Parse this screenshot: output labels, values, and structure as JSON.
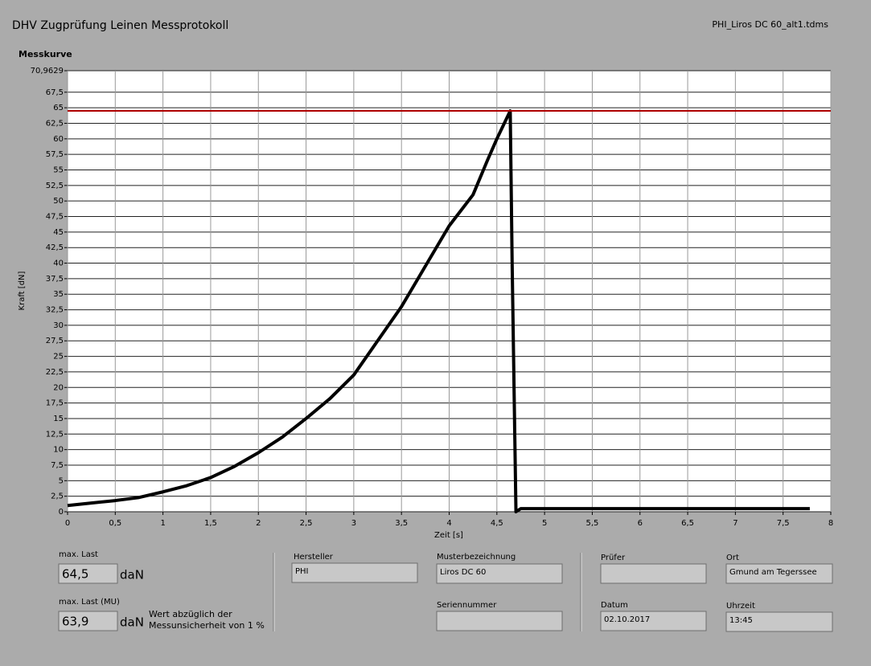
{
  "header": {
    "title": "DHV Zugprüfung Leinen Messprotokoll",
    "file": "PHI_Liros DC 60_alt1.tdms"
  },
  "chart_data": {
    "type": "line",
    "title": "Messkurve",
    "xlabel": "Zeit [s]",
    "ylabel": "Kraft [dN]",
    "xlim": [
      0,
      8
    ],
    "xticks": [
      0,
      {
        "value": 0.5,
        "label": "0,5"
      },
      1,
      {
        "value": 1.5,
        "label": "1,5"
      },
      2,
      {
        "value": 2.5,
        "label": "2,5"
      },
      3,
      {
        "value": 3.5,
        "label": "3,5"
      },
      4,
      {
        "value": 4.5,
        "label": "4,5"
      },
      5,
      {
        "value": 5.5,
        "label": "5,5"
      },
      6,
      {
        "value": 6.5,
        "label": "6,5"
      },
      7,
      {
        "value": 7.5,
        "label": "7,5"
      },
      8
    ],
    "ylim": [
      0,
      70.9629
    ],
    "yticks": [
      0,
      {
        "value": 2.5,
        "label": "2,5"
      },
      5,
      {
        "value": 7.5,
        "label": "7,5"
      },
      10,
      {
        "value": 12.5,
        "label": "12,5"
      },
      15,
      {
        "value": 17.5,
        "label": "17,5"
      },
      20,
      {
        "value": 22.5,
        "label": "22,5"
      },
      25,
      {
        "value": 27.5,
        "label": "27,5"
      },
      30,
      {
        "value": 32.5,
        "label": "32,5"
      },
      35,
      {
        "value": 37.5,
        "label": "37,5"
      },
      40,
      {
        "value": 42.5,
        "label": "42,5"
      },
      45,
      {
        "value": 47.5,
        "label": "47,5"
      },
      50,
      {
        "value": 52.5,
        "label": "52,5"
      },
      55,
      {
        "value": 57.5,
        "label": "57,5"
      },
      60,
      {
        "value": 62.5,
        "label": "62,5"
      },
      65,
      {
        "value": 67.5,
        "label": "67,5"
      },
      {
        "value": 70.9629,
        "label": "70,9629"
      }
    ],
    "grid": true,
    "series": [
      {
        "color": "#000000",
        "x": [
          0,
          0.25,
          0.5,
          0.75,
          1,
          1.25,
          1.5,
          1.75,
          2,
          2.25,
          2.5,
          2.75,
          3,
          3.25,
          3.5,
          3.75,
          4,
          4.25,
          4.4,
          4.5,
          4.64,
          4.66,
          4.7,
          4.75,
          7.78
        ],
        "values": [
          1,
          1.4,
          1.8,
          2.3,
          3.2,
          4.2,
          5.5,
          7.3,
          9.5,
          12,
          15,
          18.2,
          22,
          27.5,
          33,
          39.5,
          46,
          51,
          56.5,
          60,
          64.5,
          40,
          0,
          0.5,
          0.5
        ]
      },
      {
        "color": "#b00000",
        "x": [
          0,
          8
        ],
        "values": [
          64.5,
          64.5
        ]
      }
    ]
  },
  "fields": {
    "max_load": {
      "label": "max. Last",
      "value": "64,5",
      "unit": "daN"
    },
    "max_load_mu": {
      "label": "max. Last (MU)",
      "value": "63,9",
      "unit": "daN",
      "note": [
        "Wert abzüglich der",
        "Messunsicherheit von 1 %"
      ]
    },
    "manufacturer": {
      "label": "Hersteller",
      "value": "PHI"
    },
    "model": {
      "label": "Musterbezeichnung",
      "value": "Liros DC 60"
    },
    "serial": {
      "label": "Seriennummer"
    },
    "inspector": {
      "label": "Prüfer"
    },
    "place": {
      "label": "Ort",
      "value": "Gmund am Tegerssee"
    },
    "date": {
      "label": "Datum",
      "value": "02.10.2017"
    },
    "time": {
      "label": "Uhrzeit",
      "value": "13:45"
    }
  }
}
